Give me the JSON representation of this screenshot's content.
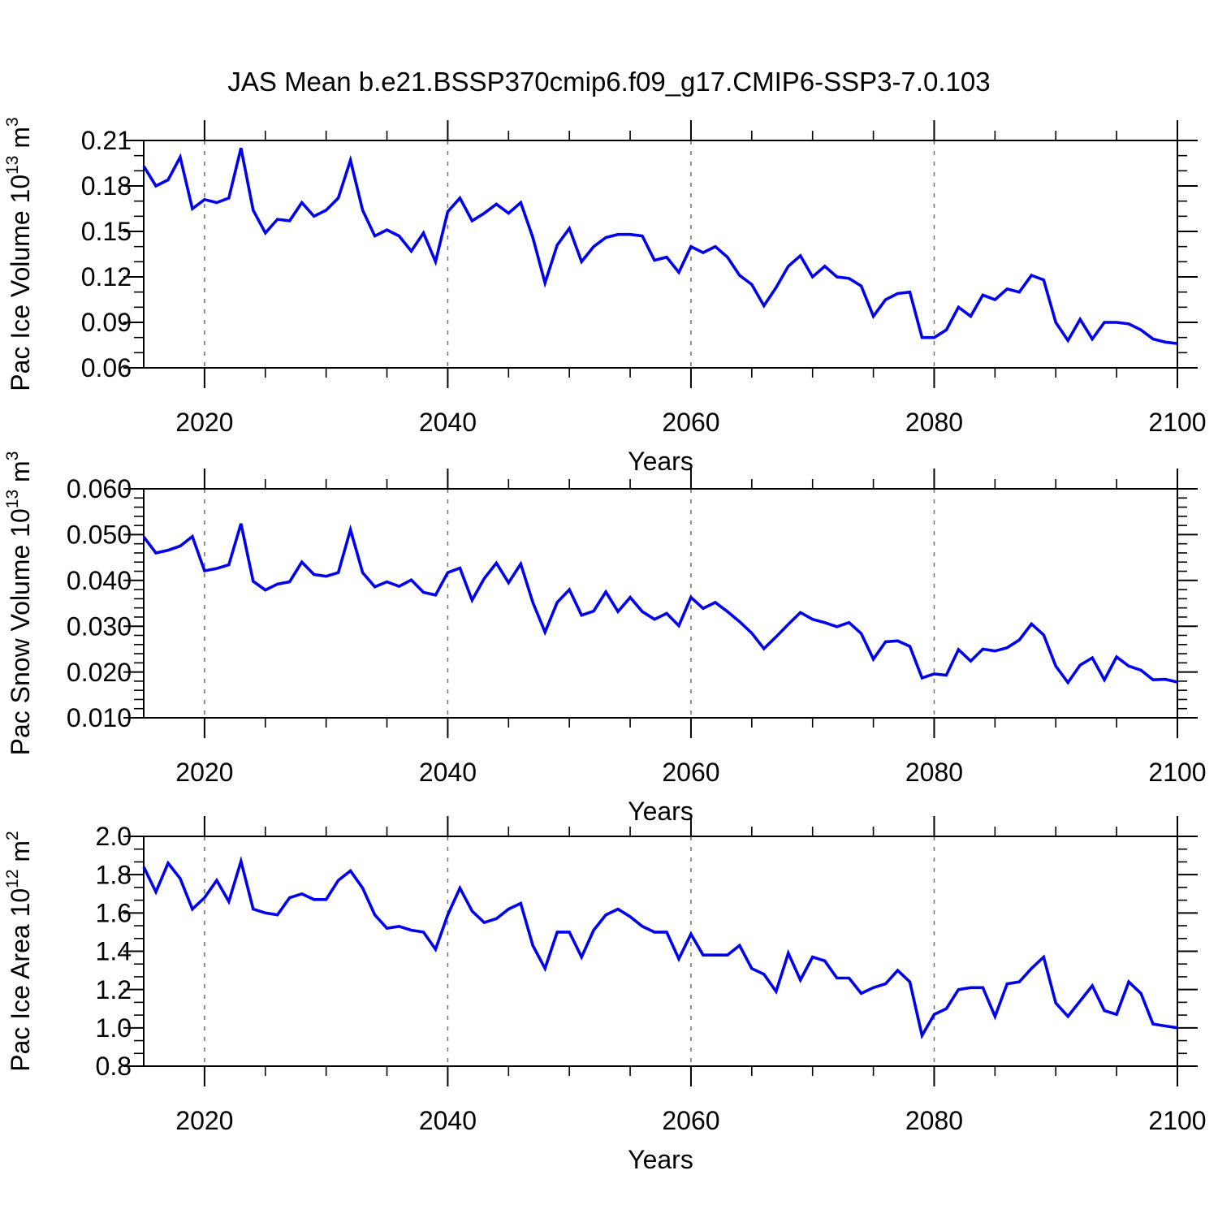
{
  "title": "JAS Mean b.e21.BSSP370cmip6.f09_g17.CMIP6-SSP3-7.0.103",
  "colors": {
    "line": "#0000EE",
    "frame": "#000000",
    "grid": "#777777",
    "text": "#000000",
    "background": "#ffffff"
  },
  "chart_data": [
    {
      "type": "line",
      "name": "pac-ice-volume",
      "ylabel": "Pac Ice Volume 10^13 m^3",
      "ylabel_rich": [
        {
          "t": "Pac Ice Volume 10"
        },
        {
          "sup": "13"
        },
        {
          "t": " m"
        },
        {
          "sup": "3"
        }
      ],
      "xlabel": "Years",
      "x_start": 2015,
      "x_step": 1,
      "xlim": [
        2015,
        2100
      ],
      "ylim": [
        0.06,
        0.21
      ],
      "ytick_values": [
        0.21,
        0.18,
        0.15,
        0.12,
        0.09,
        0.06
      ],
      "ytick_labels": [
        "0.21",
        "0.18",
        "0.15",
        "0.12",
        "0.09",
        "0.06"
      ],
      "y_minor_per_interval": 2,
      "xtick_values": [
        2020,
        2040,
        2060,
        2080,
        2100
      ],
      "xtick_labels": [
        "2020",
        "2040",
        "2060",
        "2080",
        "2100"
      ],
      "x_minor_step": 5,
      "gridlines_x": [
        2020,
        2040,
        2060,
        2080
      ],
      "grid": "vertical-dashed",
      "legend": "none",
      "values": [
        0.193,
        0.18,
        0.184,
        0.199,
        0.165,
        0.171,
        0.169,
        0.172,
        0.205,
        0.164,
        0.149,
        0.158,
        0.157,
        0.169,
        0.16,
        0.164,
        0.172,
        0.197,
        0.164,
        0.147,
        0.151,
        0.147,
        0.137,
        0.149,
        0.13,
        0.163,
        0.172,
        0.157,
        0.162,
        0.168,
        0.162,
        0.169,
        0.146,
        0.116,
        0.141,
        0.152,
        0.13,
        0.14,
        0.146,
        0.148,
        0.148,
        0.147,
        0.131,
        0.133,
        0.123,
        0.14,
        0.136,
        0.14,
        0.133,
        0.121,
        0.115,
        0.101,
        0.113,
        0.127,
        0.134,
        0.12,
        0.127,
        0.12,
        0.119,
        0.114,
        0.094,
        0.105,
        0.109,
        0.11,
        0.08,
        0.08,
        0.085,
        0.1,
        0.094,
        0.108,
        0.105,
        0.112,
        0.11,
        0.121,
        0.118,
        0.09,
        0.078,
        0.092,
        0.079,
        0.09,
        0.09,
        0.089,
        0.085,
        0.079,
        0.077,
        0.076
      ]
    },
    {
      "type": "line",
      "name": "pac-snow-volume",
      "ylabel": "Pac Snow Volume 10^13 m^3",
      "ylabel_rich": [
        {
          "t": "Pac Snow Volume 10"
        },
        {
          "sup": "13"
        },
        {
          "t": " m"
        },
        {
          "sup": "3"
        }
      ],
      "xlabel": "Years",
      "x_start": 2015,
      "x_step": 1,
      "xlim": [
        2015,
        2100
      ],
      "ylim": [
        0.01,
        0.06
      ],
      "ytick_values": [
        0.06,
        0.05,
        0.04,
        0.03,
        0.02,
        0.01
      ],
      "ytick_labels": [
        "0.060",
        "0.050",
        "0.040",
        "0.030",
        "0.020",
        "0.010"
      ],
      "y_minor_per_interval": 4,
      "xtick_values": [
        2020,
        2040,
        2060,
        2080,
        2100
      ],
      "xtick_labels": [
        "2020",
        "2040",
        "2060",
        "2080",
        "2100"
      ],
      "x_minor_step": 5,
      "gridlines_x": [
        2020,
        2040,
        2060,
        2080
      ],
      "grid": "vertical-dashed",
      "legend": "none",
      "values": [
        0.0495,
        0.046,
        0.0466,
        0.0475,
        0.0496,
        0.0421,
        0.0426,
        0.0434,
        0.0524,
        0.0398,
        0.0379,
        0.0392,
        0.0397,
        0.044,
        0.0413,
        0.0409,
        0.0417,
        0.0511,
        0.0417,
        0.0386,
        0.0397,
        0.0387,
        0.0401,
        0.0374,
        0.0368,
        0.0417,
        0.0427,
        0.0357,
        0.0404,
        0.0438,
        0.0395,
        0.0436,
        0.0352,
        0.0287,
        0.0352,
        0.038,
        0.0324,
        0.0333,
        0.0375,
        0.0332,
        0.0363,
        0.0332,
        0.0315,
        0.0328,
        0.0301,
        0.0363,
        0.0339,
        0.0352,
        0.0332,
        0.031,
        0.0285,
        0.0251,
        0.0277,
        0.0304,
        0.033,
        0.0315,
        0.0308,
        0.0299,
        0.0308,
        0.0284,
        0.0228,
        0.0266,
        0.0268,
        0.0256,
        0.0187,
        0.0196,
        0.0193,
        0.0249,
        0.0224,
        0.025,
        0.0246,
        0.0253,
        0.027,
        0.0305,
        0.0281,
        0.0213,
        0.0177,
        0.0215,
        0.0231,
        0.0183,
        0.0233,
        0.0213,
        0.0204,
        0.0183,
        0.0184,
        0.0178
      ]
    },
    {
      "type": "line",
      "name": "pac-ice-area",
      "ylabel": "Pac Ice Area 10^12 m^2",
      "ylabel_rich": [
        {
          "t": "Pac Ice Area 10"
        },
        {
          "sup": "12"
        },
        {
          "t": " m"
        },
        {
          "sup": "2"
        }
      ],
      "xlabel": "Years",
      "x_start": 2015,
      "x_step": 1,
      "xlim": [
        2015,
        2100
      ],
      "ylim": [
        0.8,
        2.0
      ],
      "ytick_values": [
        2.0,
        1.8,
        1.6,
        1.4,
        1.2,
        1.0,
        0.8
      ],
      "ytick_labels": [
        "2.0",
        "1.8",
        "1.6",
        "1.4",
        "1.2",
        "1.0",
        "0.8"
      ],
      "y_minor_per_interval": 2,
      "xtick_values": [
        2020,
        2040,
        2060,
        2080,
        2100
      ],
      "xtick_labels": [
        "2020",
        "2040",
        "2060",
        "2080",
        "2100"
      ],
      "x_minor_step": 5,
      "gridlines_x": [
        2020,
        2040,
        2060,
        2080
      ],
      "grid": "vertical-dashed",
      "legend": "none",
      "values": [
        1.84,
        1.71,
        1.86,
        1.78,
        1.62,
        1.68,
        1.77,
        1.66,
        1.87,
        1.62,
        1.6,
        1.59,
        1.68,
        1.7,
        1.67,
        1.67,
        1.77,
        1.82,
        1.73,
        1.59,
        1.52,
        1.53,
        1.51,
        1.5,
        1.41,
        1.59,
        1.73,
        1.61,
        1.55,
        1.57,
        1.62,
        1.65,
        1.43,
        1.31,
        1.5,
        1.5,
        1.37,
        1.51,
        1.59,
        1.62,
        1.58,
        1.53,
        1.5,
        1.5,
        1.36,
        1.49,
        1.38,
        1.38,
        1.38,
        1.43,
        1.31,
        1.28,
        1.19,
        1.39,
        1.25,
        1.37,
        1.35,
        1.26,
        1.26,
        1.18,
        1.21,
        1.23,
        1.3,
        1.24,
        0.96,
        1.07,
        1.1,
        1.2,
        1.21,
        1.21,
        1.06,
        1.23,
        1.24,
        1.31,
        1.37,
        1.13,
        1.06,
        1.14,
        1.22,
        1.09,
        1.07,
        1.24,
        1.18,
        1.02,
        1.01,
        1.0
      ]
    }
  ]
}
